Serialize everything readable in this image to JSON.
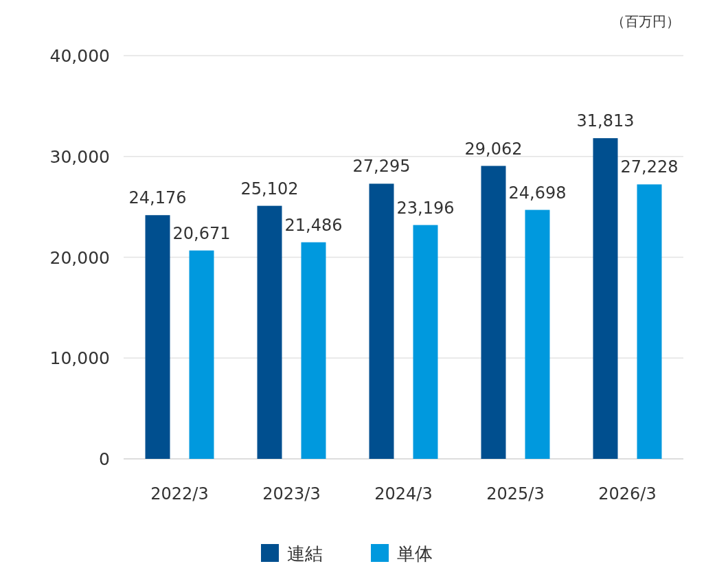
{
  "chart_data": {
    "type": "bar",
    "ylabel": "（百万円）",
    "categories": [
      "2022/3",
      "2023/3",
      "2024/3",
      "2025/3",
      "2026/3"
    ],
    "series": [
      {
        "name": "連結",
        "color": "#004f8f",
        "values": [
          24176,
          25102,
          27295,
          29062,
          31813
        ],
        "value_labels": [
          "24,176",
          "25,102",
          "27,295",
          "29,062",
          "31,813"
        ]
      },
      {
        "name": "単体",
        "color": "#0099de",
        "values": [
          20671,
          21486,
          23196,
          24698,
          27228
        ],
        "value_labels": [
          "20,671",
          "21,486",
          "23,196",
          "24,698",
          "27,228"
        ]
      }
    ],
    "ylim": [
      0,
      40000
    ],
    "yticks": [
      0,
      {
        "value": 10000,
        "label": "10,000"
      },
      {
        "value": 20000,
        "label": "20,000"
      },
      {
        "value": 30000,
        "label": "30,000"
      },
      {
        "value": 40000,
        "label": "40,000"
      }
    ],
    "grid": "y",
    "legend": "bottom"
  }
}
